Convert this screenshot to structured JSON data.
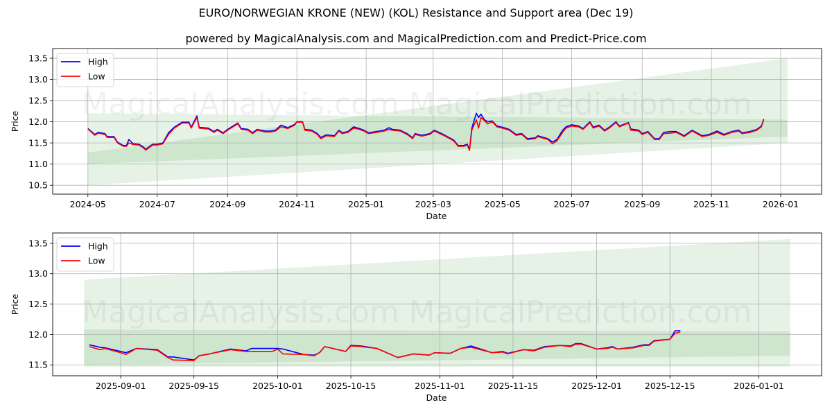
{
  "title": "EURO/NORWEGIAN KRONE (NEW) (KOL) Resistance and Support area (Dec 19)",
  "subtitle": "powered by MagicalAnalysis.com and MagicalPrediction.com and Predict-Price.com",
  "watermarks": [
    "MagicalAnalysis.com",
    "MagicalPrediction.com"
  ],
  "colors": {
    "high": "#0000ff",
    "low": "#ff0000",
    "band": "#008000",
    "grid": "#b0b0b0"
  },
  "chart_data": [
    {
      "type": "line",
      "xlabel": "Date",
      "ylabel": "Price",
      "xlim": [
        "2024-03-31",
        "2026-02-06"
      ],
      "ylim": [
        10.29,
        13.73
      ],
      "grid": true,
      "legend": {
        "placement": "top-left",
        "entries": [
          "High",
          "Low"
        ]
      },
      "xticks": [
        {
          "date": "2024-05-01",
          "label": "2024-05"
        },
        {
          "date": "2024-07-01",
          "label": "2024-07"
        },
        {
          "date": "2024-09-01",
          "label": "2024-09"
        },
        {
          "date": "2024-11-01",
          "label": "2024-11"
        },
        {
          "date": "2025-01-01",
          "label": "2025-01"
        },
        {
          "date": "2025-03-01",
          "label": "2025-03"
        },
        {
          "date": "2025-05-01",
          "label": "2025-05"
        },
        {
          "date": "2025-07-01",
          "label": "2025-07"
        },
        {
          "date": "2025-09-01",
          "label": "2025-09"
        },
        {
          "date": "2025-11-01",
          "label": "2025-11"
        },
        {
          "date": "2026-01-01",
          "label": "2026-01"
        }
      ],
      "yticks": [
        10.5,
        11.0,
        11.5,
        12.0,
        12.5,
        13.0,
        13.5
      ],
      "bands": [
        {
          "name": "wide",
          "start": "2024-05-01",
          "end": "2026-01-07",
          "upper": [
            11.27,
            13.5
          ],
          "lower": [
            10.5,
            11.5
          ]
        },
        {
          "name": "narrow",
          "start": "2024-05-01",
          "end": "2026-01-07",
          "upper": [
            12.2,
            12.05
          ],
          "lower": [
            11.0,
            11.65
          ]
        }
      ],
      "x": [
        "2024-05-01",
        "2024-05-07",
        "2024-05-10",
        "2024-05-16",
        "2024-05-18",
        "2024-05-24",
        "2024-05-27",
        "2024-06-01",
        "2024-06-04",
        "2024-06-06",
        "2024-06-10",
        "2024-06-15",
        "2024-06-19",
        "2024-06-21",
        "2024-06-27",
        "2024-07-01",
        "2024-07-06",
        "2024-07-11",
        "2024-07-16",
        "2024-07-23",
        "2024-07-29",
        "2024-07-31",
        "2024-08-05",
        "2024-08-07",
        "2024-08-15",
        "2024-08-20",
        "2024-08-23",
        "2024-08-28",
        "2024-09-01",
        "2024-09-10",
        "2024-09-13",
        "2024-09-19",
        "2024-09-23",
        "2024-09-27",
        "2024-10-04",
        "2024-10-09",
        "2024-10-13",
        "2024-10-18",
        "2024-10-24",
        "2024-10-30",
        "2024-11-01",
        "2024-11-06",
        "2024-11-08",
        "2024-11-14",
        "2024-11-19",
        "2024-11-22",
        "2024-11-27",
        "2024-12-04",
        "2024-12-08",
        "2024-12-11",
        "2024-12-16",
        "2024-12-21",
        "2024-12-26",
        "2024-12-30",
        "2025-01-03",
        "2025-01-10",
        "2025-01-17",
        "2025-01-21",
        "2025-01-24",
        "2025-01-31",
        "2025-02-06",
        "2025-02-11",
        "2025-02-13",
        "2025-02-19",
        "2025-02-26",
        "2025-03-02",
        "2025-03-10",
        "2025-03-19",
        "2025-03-23",
        "2025-03-28",
        "2025-03-31",
        "2025-04-02",
        "2025-04-04",
        "2025-04-08",
        "2025-04-10",
        "2025-04-12",
        "2025-04-15",
        "2025-04-18",
        "2025-04-22",
        "2025-04-26",
        "2025-05-01",
        "2025-05-07",
        "2025-05-13",
        "2025-05-18",
        "2025-05-23",
        "2025-05-30",
        "2025-06-01",
        "2025-06-10",
        "2025-06-14",
        "2025-06-18",
        "2025-06-23",
        "2025-06-26",
        "2025-07-01",
        "2025-07-07",
        "2025-07-11",
        "2025-07-17",
        "2025-07-20",
        "2025-07-25",
        "2025-07-30",
        "2025-08-03",
        "2025-08-09",
        "2025-08-12",
        "2025-08-20",
        "2025-08-22",
        "2025-08-29",
        "2025-09-01",
        "2025-09-06",
        "2025-09-12",
        "2025-09-16",
        "2025-09-20",
        "2025-09-26",
        "2025-10-01",
        "2025-10-08",
        "2025-10-15",
        "2025-10-24",
        "2025-10-30",
        "2025-11-06",
        "2025-11-12",
        "2025-11-19",
        "2025-11-25",
        "2025-11-28",
        "2025-12-05",
        "2025-12-11",
        "2025-12-15",
        "2025-12-17"
      ],
      "series": [
        {
          "name": "High",
          "values": [
            11.84,
            11.7,
            11.75,
            11.72,
            11.65,
            11.65,
            11.52,
            11.44,
            11.44,
            11.58,
            11.48,
            11.47,
            11.4,
            11.35,
            11.47,
            11.47,
            11.5,
            11.74,
            11.87,
            11.99,
            11.99,
            11.87,
            12.14,
            11.87,
            11.85,
            11.77,
            11.82,
            11.74,
            11.82,
            11.97,
            11.84,
            11.82,
            11.74,
            11.82,
            11.78,
            11.78,
            11.8,
            11.92,
            11.86,
            11.94,
            12.0,
            12.0,
            11.82,
            11.8,
            11.72,
            11.63,
            11.69,
            11.67,
            11.8,
            11.74,
            11.77,
            11.88,
            11.84,
            11.8,
            11.74,
            11.77,
            11.8,
            11.86,
            11.82,
            11.8,
            11.72,
            11.62,
            11.72,
            11.68,
            11.72,
            11.8,
            11.7,
            11.57,
            11.44,
            11.44,
            11.47,
            11.35,
            11.85,
            12.2,
            12.1,
            12.18,
            12.05,
            12.0,
            12.02,
            11.9,
            11.87,
            11.82,
            11.7,
            11.72,
            11.6,
            11.62,
            11.67,
            11.6,
            11.52,
            11.58,
            11.8,
            11.88,
            11.93,
            11.9,
            11.84,
            12.0,
            11.87,
            11.92,
            11.8,
            11.87,
            12.0,
            11.9,
            11.98,
            11.83,
            11.8,
            11.72,
            11.77,
            11.6,
            11.6,
            11.75,
            11.77,
            11.77,
            11.67,
            11.8,
            11.67,
            11.7,
            11.78,
            11.7,
            11.77,
            11.8,
            11.74,
            11.77,
            11.82,
            11.9,
            12.06
          ]
        },
        {
          "name": "Low",
          "values": [
            11.83,
            11.68,
            11.73,
            11.7,
            11.63,
            11.63,
            11.5,
            11.42,
            11.42,
            11.5,
            11.46,
            11.45,
            11.38,
            11.33,
            11.45,
            11.45,
            11.48,
            11.7,
            11.85,
            11.97,
            11.97,
            11.85,
            12.1,
            11.85,
            11.83,
            11.75,
            11.8,
            11.72,
            11.8,
            11.95,
            11.82,
            11.8,
            11.72,
            11.8,
            11.76,
            11.76,
            11.78,
            11.88,
            11.84,
            11.92,
            11.99,
            11.99,
            11.8,
            11.78,
            11.7,
            11.6,
            11.67,
            11.65,
            11.78,
            11.72,
            11.75,
            11.85,
            11.82,
            11.78,
            11.72,
            11.75,
            11.78,
            11.82,
            11.8,
            11.78,
            11.7,
            11.6,
            11.7,
            11.66,
            11.7,
            11.78,
            11.68,
            11.55,
            11.42,
            11.42,
            11.45,
            11.32,
            11.8,
            12.05,
            11.85,
            12.1,
            12.03,
            11.95,
            12.0,
            11.88,
            11.85,
            11.8,
            11.68,
            11.7,
            11.58,
            11.6,
            11.65,
            11.58,
            11.48,
            11.55,
            11.75,
            11.85,
            11.9,
            11.88,
            11.82,
            11.98,
            11.85,
            11.9,
            11.78,
            11.85,
            11.98,
            11.88,
            11.97,
            11.8,
            11.78,
            11.7,
            11.75,
            11.58,
            11.58,
            11.72,
            11.73,
            11.75,
            11.65,
            11.78,
            11.65,
            11.68,
            11.75,
            11.68,
            11.75,
            11.78,
            11.72,
            11.75,
            11.8,
            11.88,
            12.05
          ]
        }
      ]
    },
    {
      "type": "line",
      "xlabel": "Date",
      "ylabel": "Price",
      "xlim": [
        "2025-08-19",
        "2026-01-13"
      ],
      "ylim": [
        11.32,
        13.67
      ],
      "grid": true,
      "legend": {
        "placement": "top-left",
        "entries": [
          "High",
          "Low"
        ]
      },
      "xticks": [
        {
          "date": "2025-09-01",
          "label": "2025-09-01"
        },
        {
          "date": "2025-09-15",
          "label": "2025-09-15"
        },
        {
          "date": "2025-10-01",
          "label": "2025-10-01"
        },
        {
          "date": "2025-10-15",
          "label": "2025-10-15"
        },
        {
          "date": "2025-11-01",
          "label": "2025-11-01"
        },
        {
          "date": "2025-11-15",
          "label": "2025-11-15"
        },
        {
          "date": "2025-12-01",
          "label": "2025-12-01"
        },
        {
          "date": "2025-12-15",
          "label": "2025-12-15"
        },
        {
          "date": "2026-01-01",
          "label": "2026-01-01"
        }
      ],
      "yticks": [
        11.5,
        12.0,
        12.5,
        13.0,
        13.5
      ],
      "bands": [
        {
          "name": "wide",
          "start": "2025-08-25",
          "end": "2026-01-07",
          "upper": [
            12.9,
            13.57
          ],
          "lower": [
            11.47,
            11.47
          ]
        },
        {
          "name": "narrow",
          "start": "2025-08-25",
          "end": "2026-01-07",
          "upper": [
            12.08,
            12.05
          ],
          "lower": [
            11.5,
            11.65
          ]
        }
      ],
      "x": [
        "2025-08-26",
        "2025-08-28",
        "2025-08-29",
        "2025-09-01",
        "2025-09-02",
        "2025-09-04",
        "2025-09-08",
        "2025-09-10",
        "2025-09-11",
        "2025-09-15",
        "2025-09-16",
        "2025-09-18",
        "2025-09-22",
        "2025-09-25",
        "2025-09-26",
        "2025-09-30",
        "2025-10-01",
        "2025-10-02",
        "2025-10-06",
        "2025-10-08",
        "2025-10-09",
        "2025-10-10",
        "2025-10-14",
        "2025-10-15",
        "2025-10-17",
        "2025-10-20",
        "2025-10-24",
        "2025-10-27",
        "2025-10-30",
        "2025-10-31",
        "2025-11-03",
        "2025-11-05",
        "2025-11-07",
        "2025-11-11",
        "2025-11-13",
        "2025-11-14",
        "2025-11-17",
        "2025-11-19",
        "2025-11-21",
        "2025-11-24",
        "2025-11-26",
        "2025-11-27",
        "2025-11-28",
        "2025-12-01",
        "2025-12-03",
        "2025-12-04",
        "2025-12-05",
        "2025-12-08",
        "2025-12-10",
        "2025-12-11",
        "2025-12-12",
        "2025-12-15",
        "2025-12-16",
        "2025-12-17"
      ],
      "series": [
        {
          "name": "High",
          "values": [
            11.83,
            11.79,
            11.78,
            11.72,
            11.7,
            11.77,
            11.75,
            11.63,
            11.63,
            11.58,
            11.65,
            11.68,
            11.76,
            11.73,
            11.77,
            11.77,
            11.77,
            11.76,
            11.67,
            11.66,
            11.7,
            11.8,
            11.72,
            11.82,
            11.81,
            11.77,
            11.62,
            11.68,
            11.66,
            11.7,
            11.69,
            11.77,
            11.81,
            11.7,
            11.72,
            11.69,
            11.75,
            11.74,
            11.8,
            11.82,
            11.81,
            11.85,
            11.85,
            11.76,
            11.78,
            11.8,
            11.76,
            11.79,
            11.83,
            11.83,
            11.9,
            11.92,
            12.06,
            12.06
          ]
        },
        {
          "name": "Low",
          "values": [
            11.8,
            11.75,
            11.77,
            11.7,
            11.67,
            11.77,
            11.74,
            11.62,
            11.58,
            11.57,
            11.65,
            11.68,
            11.75,
            11.72,
            11.72,
            11.72,
            11.76,
            11.68,
            11.67,
            11.65,
            11.7,
            11.8,
            11.72,
            11.81,
            11.8,
            11.77,
            11.62,
            11.68,
            11.66,
            11.7,
            11.69,
            11.77,
            11.79,
            11.7,
            11.71,
            11.68,
            11.75,
            11.73,
            11.79,
            11.82,
            11.8,
            11.84,
            11.84,
            11.76,
            11.77,
            11.79,
            11.76,
            11.78,
            11.82,
            11.82,
            11.89,
            11.92,
            12.02,
            12.04
          ]
        }
      ]
    }
  ]
}
